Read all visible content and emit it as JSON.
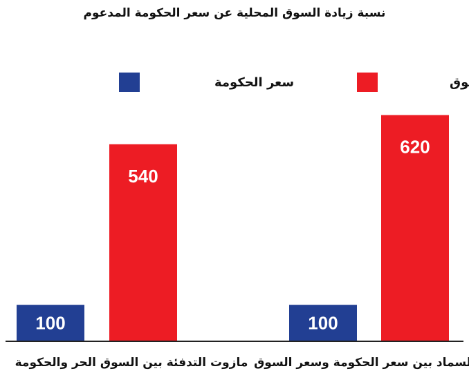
{
  "chart_data": {
    "type": "bar",
    "title": "نسبة زيادة السوق المحلية عن سعر الحكومة المدعوم",
    "categories": [
      "مازوت التدفئة بين السوق الحر والحكومة",
      "السماد بين سعر الحكومة وسعر السوق"
    ],
    "series": [
      {
        "name": "سعر الحكومة",
        "color": "#223f93",
        "values": [
          100,
          100
        ]
      },
      {
        "name": "سعر السوق",
        "color": "#ed1c24",
        "values": [
          540,
          620
        ]
      }
    ],
    "ylim": [
      0,
      640
    ],
    "legend": "top",
    "grid": false,
    "data_labels": true,
    "xlabel": "",
    "ylabel": ""
  }
}
